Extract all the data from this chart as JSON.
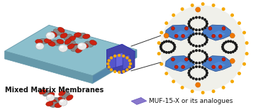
{
  "bg_color": "#ffffff",
  "membrane_top_color": "#8bbfcc",
  "membrane_top_edge": "#6699aa",
  "membrane_front_color": "#6699aa",
  "membrane_right_color": "#5588aa",
  "mof_embed_color": "#5555bb",
  "mof_embed_dark": "#3333aa",
  "mof_circle_color": "#f5a800",
  "mof_bg_color": "#f5f5f0",
  "mof_fill_color": "#3a72c4",
  "mof_fill_light": "#6699dd",
  "mof_dot_color": "#1a1a1a",
  "mof_red_dot": "#cc2200",
  "mof_orange_dot": "#f07800",
  "co2_red": "#cc2211",
  "co2_gray": "#aaaaaa",
  "co2_white": "#eeeeee",
  "purple_color": "#8877cc",
  "label_mmm": "Mixed Matrix Membranes",
  "label_muf": "MUF-15-X or its analogues",
  "label_fontsize": 7.0,
  "legend_fontsize": 6.5
}
